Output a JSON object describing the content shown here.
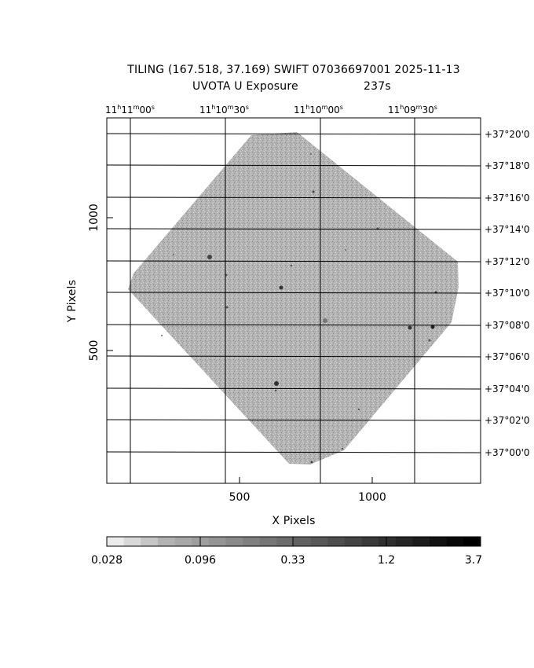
{
  "header": {
    "title": "TILING (167.518, 37.169) SWIFT 07036697001 2025-11-13",
    "subtitle": "UVOTA U Exposure",
    "exposure": "237s"
  },
  "axes": {
    "x_label": "X Pixels",
    "y_label": "Y Pixels",
    "x_ticks": [
      "500",
      "1000"
    ],
    "y_ticks": [
      "1000",
      "500"
    ],
    "ra_ticks": [
      {
        "h": "11",
        "m": "11",
        "s": "00"
      },
      {
        "h": "11",
        "m": "10",
        "s": "30"
      },
      {
        "h": "11",
        "m": "10",
        "s": "00"
      },
      {
        "h": "11",
        "m": "09",
        "s": "30"
      }
    ],
    "dec_ticks": [
      "+37°20'0",
      "+37°18'0",
      "+37°16'0",
      "+37°14'0",
      "+37°12'0",
      "+37°10'0",
      "+37°08'0",
      "+37°06'0",
      "+37°04'0",
      "+37°02'0",
      "+37°00'0"
    ]
  },
  "colorbar": {
    "labels": [
      "0.028",
      "0.096",
      "0.33",
      "1.2",
      "3.7"
    ],
    "colors": [
      "#ececec",
      "#d9d9d9",
      "#c6c6c6",
      "#b3b3b3",
      "#a8a8a8",
      "#9e9e9e",
      "#949494",
      "#8a8a8a",
      "#808080",
      "#767676",
      "#6c6c6c",
      "#626262",
      "#585858",
      "#4e4e4e",
      "#444444",
      "#3a3a3a",
      "#303030",
      "#262626",
      "#1c1c1c",
      "#121212",
      "#080808",
      "#000000"
    ]
  },
  "image": {
    "background_gray": "#a9a9a9"
  }
}
